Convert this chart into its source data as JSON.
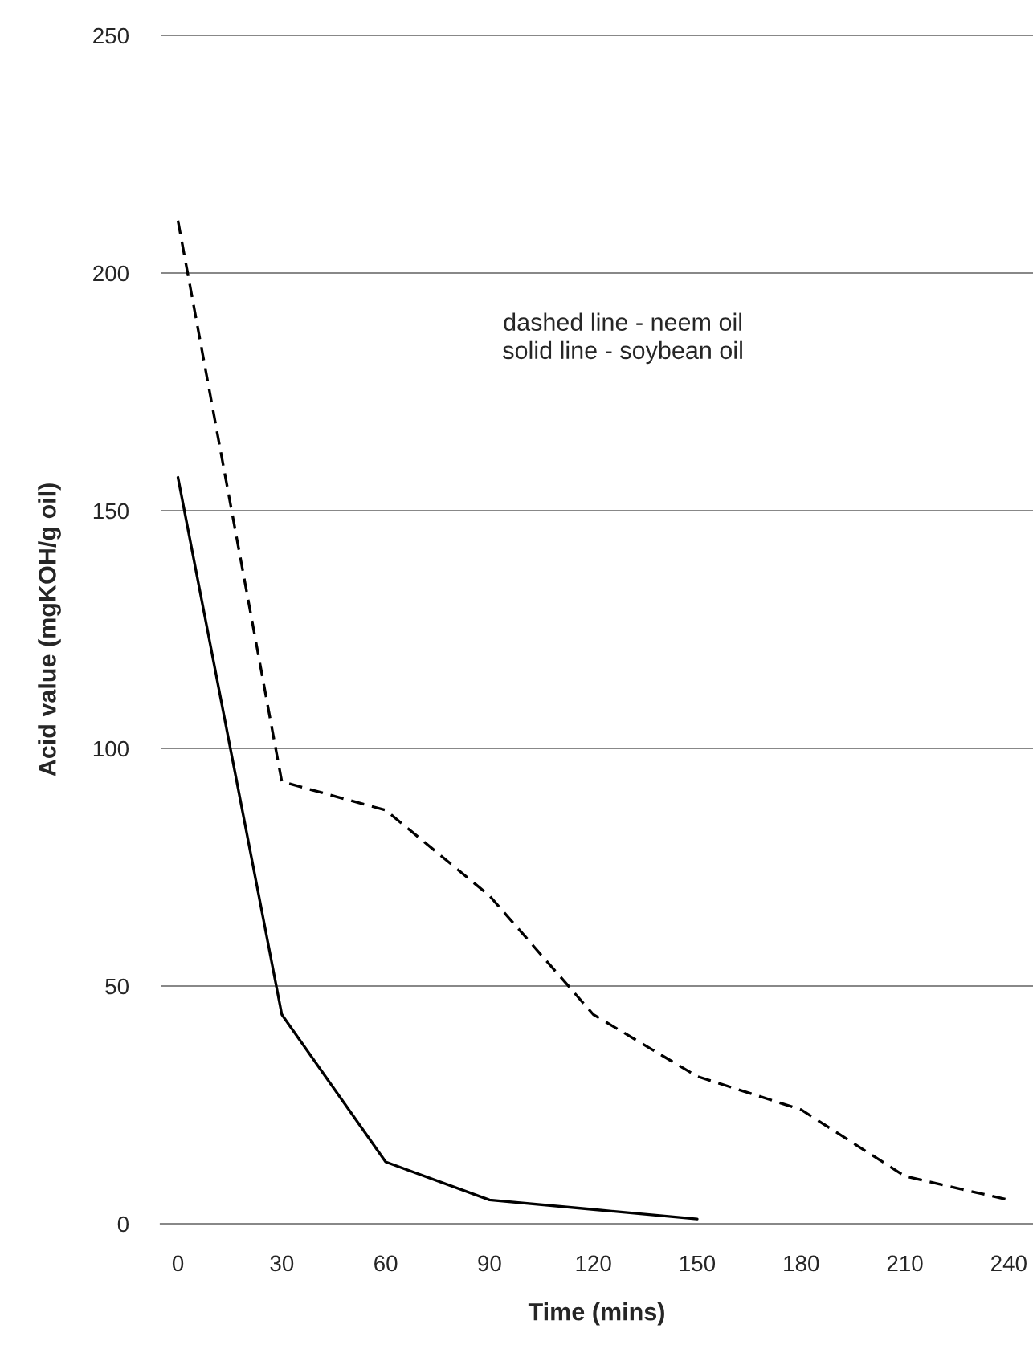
{
  "chart_data": {
    "type": "line",
    "xlabel": "Time (mins)",
    "ylabel": "Acid value (mgKOH/g oil)",
    "x": [
      0,
      30,
      60,
      90,
      120,
      150,
      180,
      210,
      240
    ],
    "series": [
      {
        "color": "#000000",
        "line_style": "dashed",
        "values": [
          211,
          93,
          87,
          69,
          44,
          31,
          24,
          10,
          5
        ]
      },
      {
        "color": "#000000",
        "line_style": "solid",
        "values": [
          157,
          44,
          13,
          5,
          3,
          1,
          null,
          null,
          null
        ]
      }
    ],
    "xlim": [
      -5,
      247
    ],
    "ylim": [
      0,
      250
    ],
    "xticks": [
      0,
      30,
      60,
      90,
      120,
      150,
      180,
      210,
      240
    ],
    "yticks": [
      0,
      50,
      100,
      150,
      200,
      250
    ],
    "grid": "y",
    "marker": "none",
    "legend": false,
    "annotations": [
      "dashed line - neem oil\nsolid line - soybean oil"
    ]
  }
}
